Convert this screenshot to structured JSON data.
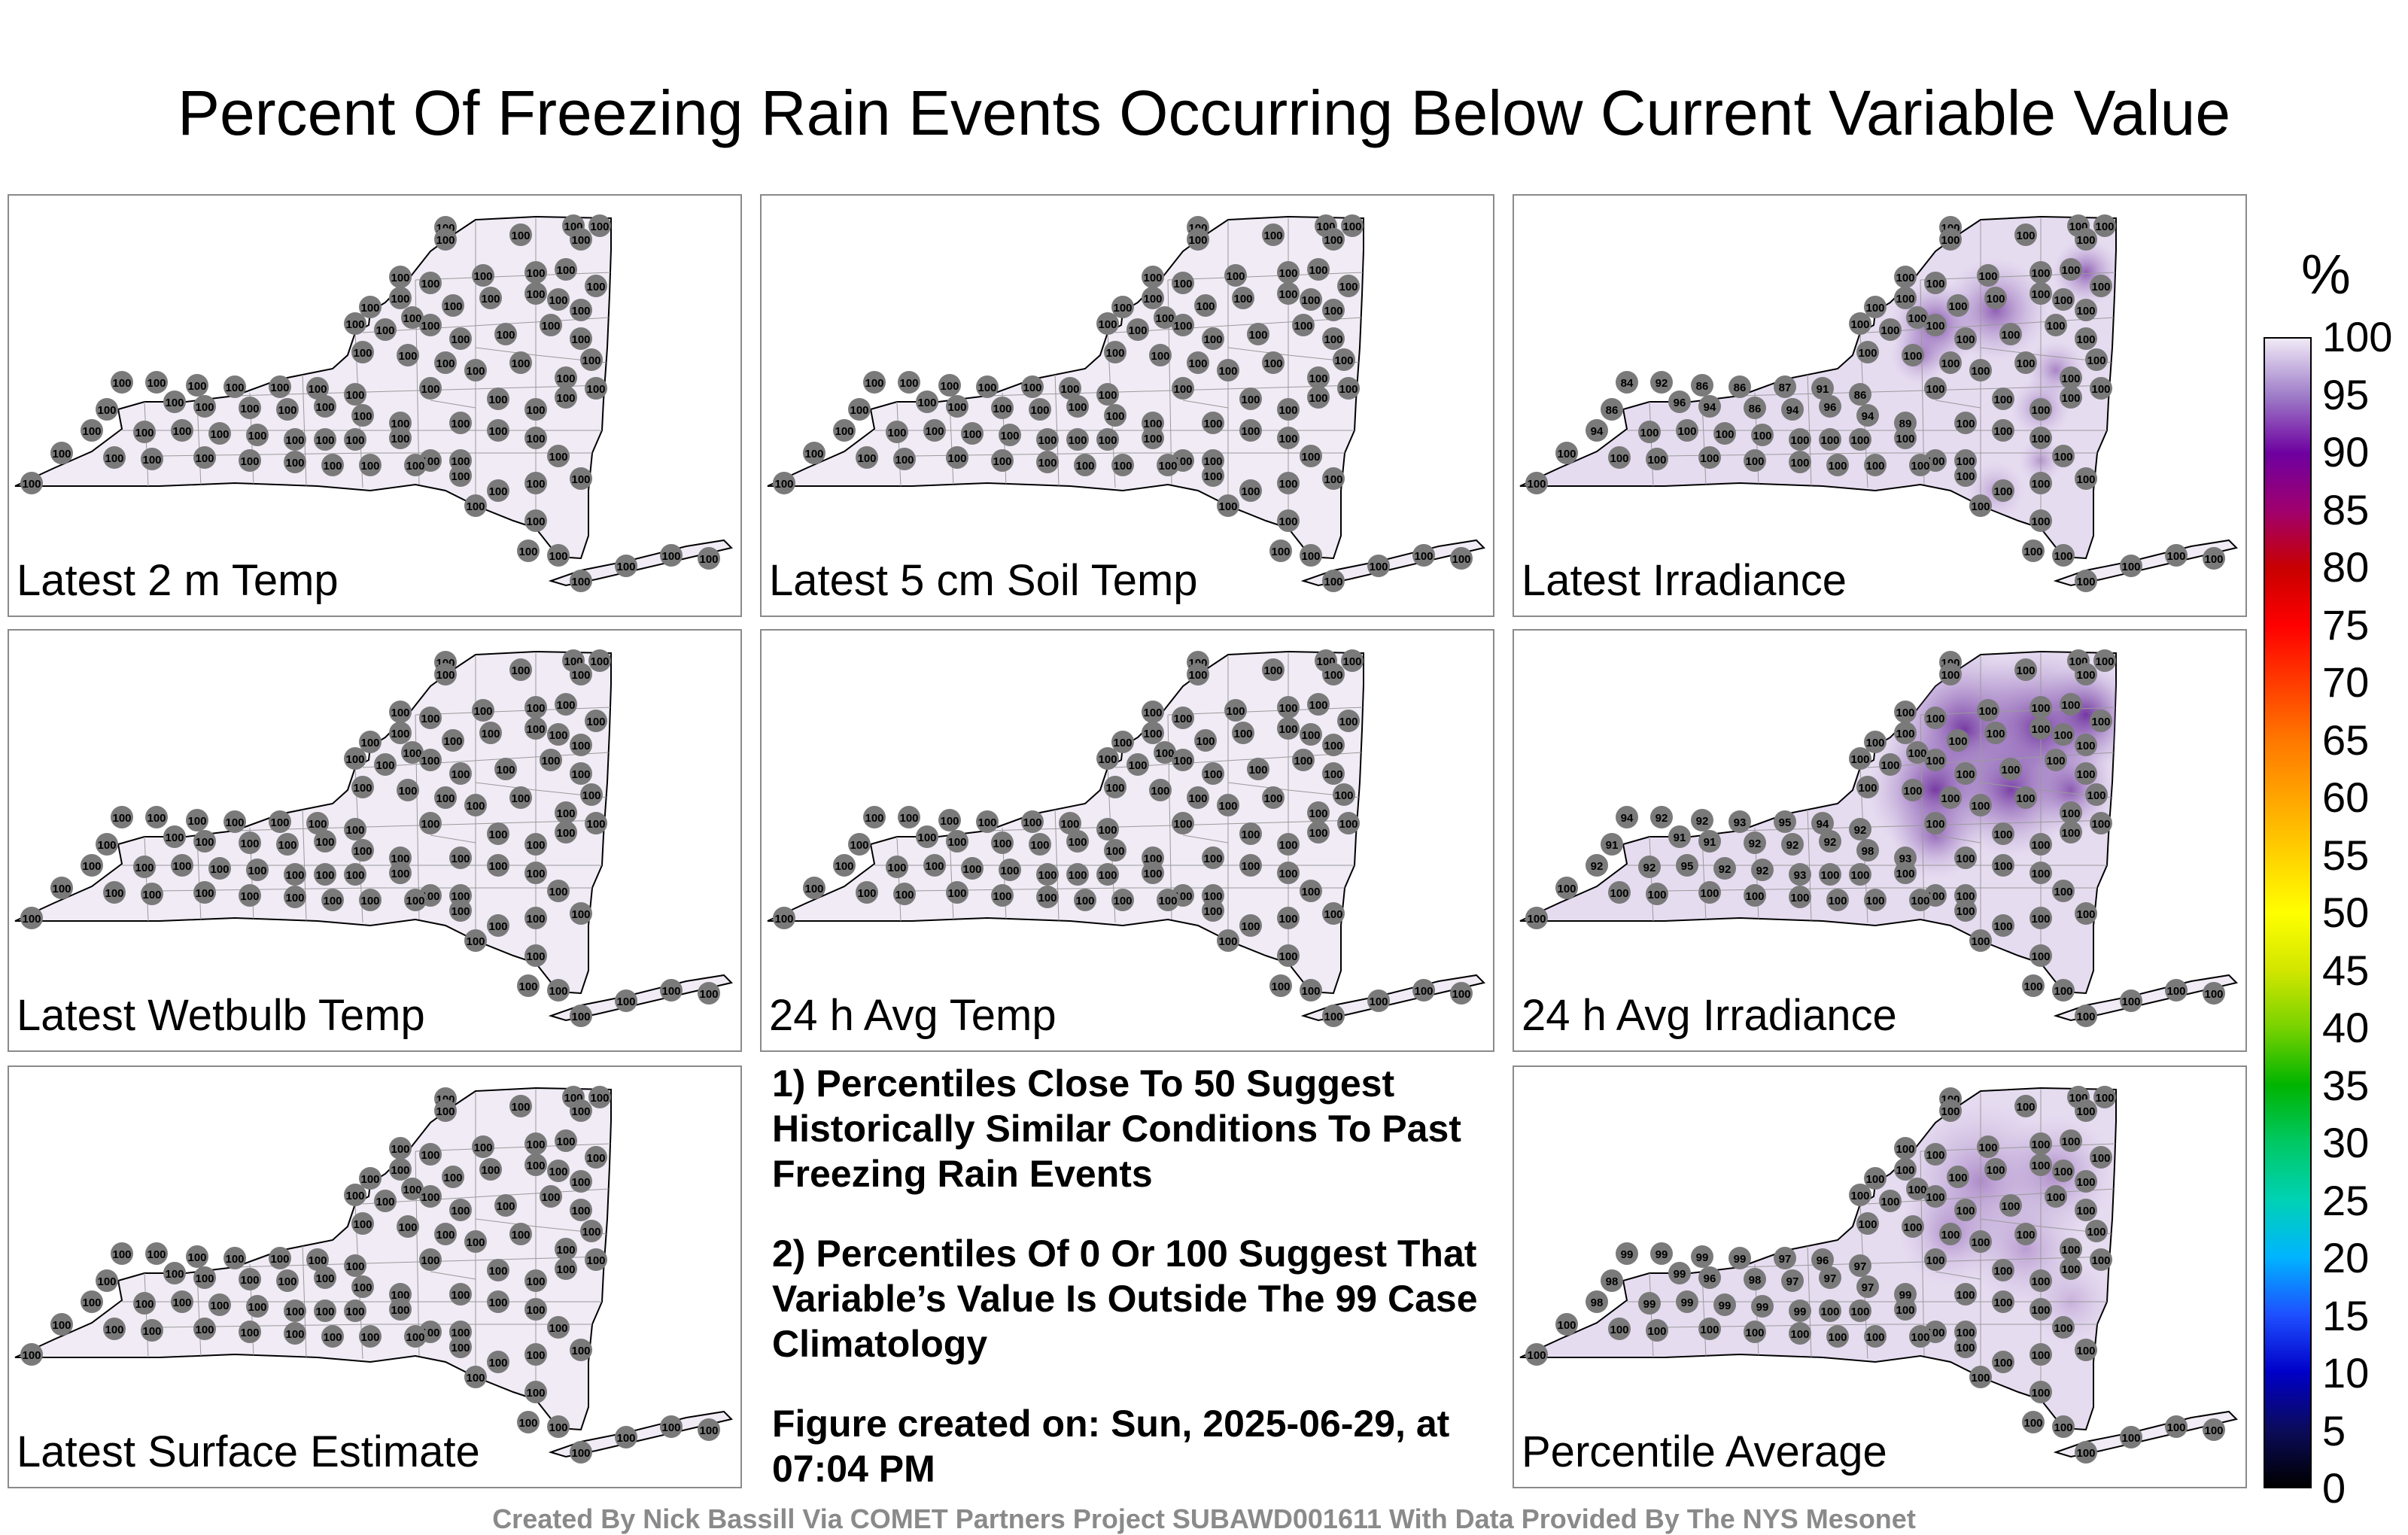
{
  "title": "Percent Of Freezing Rain Events Occurring Below Current Variable Value",
  "panels": [
    {
      "label": "Latest 2 m Temp",
      "shade": "none",
      "values": [
        "100"
      ]
    },
    {
      "label": "Latest 5 cm Soil Temp",
      "shade": "none",
      "values": [
        "100"
      ]
    },
    {
      "label": "Latest Irradiance",
      "shade": "adk",
      "values": [
        "100",
        "100",
        "100",
        "100",
        "100",
        "100",
        "100",
        "100",
        "100",
        "100",
        "100",
        "100",
        "100",
        "100",
        "100",
        "100",
        "100",
        "100",
        "100",
        "100",
        "100",
        "100",
        "100",
        "100",
        "100",
        "100",
        "100",
        "100",
        "100",
        "100",
        "100",
        "100",
        "100",
        "100",
        "100",
        "100",
        "100",
        "100",
        "100",
        "100",
        "100",
        "100",
        "100",
        "100",
        "100",
        "100",
        "100",
        "100",
        "100",
        "100",
        "84",
        "92",
        "86",
        "86",
        "87",
        "91",
        "86",
        "96",
        "94",
        "86",
        "94",
        "96",
        "94",
        "89",
        "86",
        "94",
        "100",
        "100",
        "100",
        "100",
        "100"
      ]
    },
    {
      "label": "Latest Wetbulb Temp",
      "shade": "none",
      "values": [
        "100"
      ]
    },
    {
      "label": "24 h Avg Temp",
      "shade": "none",
      "values": [
        "100"
      ]
    },
    {
      "label": "24 h Avg Irradiance",
      "shade": "adk2",
      "values": [
        "100",
        "100",
        "100",
        "100",
        "100",
        "100",
        "100",
        "100",
        "100",
        "100",
        "100",
        "100",
        "100",
        "100",
        "100",
        "100",
        "100",
        "100",
        "100",
        "100",
        "100",
        "100",
        "100",
        "100",
        "100",
        "100",
        "100",
        "100",
        "100",
        "100",
        "100",
        "100",
        "100",
        "100",
        "100",
        "100",
        "100",
        "100",
        "100",
        "100",
        "100",
        "100",
        "100",
        "100",
        "100",
        "100",
        "100",
        "100",
        "100",
        "100",
        "94",
        "92",
        "92",
        "93",
        "95",
        "94",
        "92",
        "91",
        "91",
        "92",
        "92",
        "92",
        "98",
        "93",
        "91",
        "92",
        "92",
        "95",
        "92",
        "92",
        "93"
      ]
    },
    {
      "label": "Latest Surface Estimate",
      "shade": "none",
      "values": [
        "100"
      ]
    },
    {
      "label": "Percentile Average",
      "shade": "avg",
      "values": [
        "100",
        "100",
        "100",
        "100",
        "100",
        "100",
        "100",
        "100",
        "100",
        "100",
        "100",
        "100",
        "100",
        "100",
        "100",
        "100",
        "100",
        "100",
        "100",
        "100",
        "100",
        "100",
        "100",
        "100",
        "100",
        "100",
        "100",
        "100",
        "100",
        "100",
        "100",
        "100",
        "100",
        "100",
        "100",
        "100",
        "100",
        "100",
        "100",
        "100",
        "100",
        "100",
        "100",
        "100",
        "100",
        "100",
        "100",
        "100",
        "100",
        "100",
        "99",
        "99",
        "99",
        "99",
        "97",
        "96",
        "97",
        "99",
        "96",
        "98",
        "97",
        "97",
        "97",
        "99",
        "98",
        "98",
        "99",
        "99",
        "99",
        "99",
        "99"
      ]
    }
  ],
  "notes": [
    "1) Percentiles Close To 50 Suggest Historically Similar Conditions To Past Freezing Rain Events",
    "2) Percentiles Of 0 Or 100 Suggest That Variable’s Value Is Outside The 99 Case Climatology",
    "Figure created on: Sun, 2025-06-29, at 07:04 PM"
  ],
  "colorbar": {
    "unit": "%",
    "ticks": [
      "100",
      "95",
      "90",
      "85",
      "80",
      "75",
      "70",
      "65",
      "60",
      "55",
      "50",
      "45",
      "40",
      "35",
      "30",
      "25",
      "20",
      "15",
      "10",
      "5",
      "0"
    ],
    "colors": [
      "#000000",
      "#0b0b5c",
      "#0000c8",
      "#1e50ff",
      "#00b4ff",
      "#00d2b4",
      "#00c864",
      "#00b400",
      "#78d200",
      "#d2e600",
      "#ffff00",
      "#ffd200",
      "#ffa500",
      "#ff7800",
      "#ff3c00",
      "#ff0000",
      "#c80000",
      "#a0006e",
      "#6e00a0",
      "#9e7cc8",
      "#f0eaf6"
    ]
  },
  "credit": "Created By Nick Bassill Via COMET Partners Project SUBAWD001611 With Data Provided By The NYS Mesonet"
}
